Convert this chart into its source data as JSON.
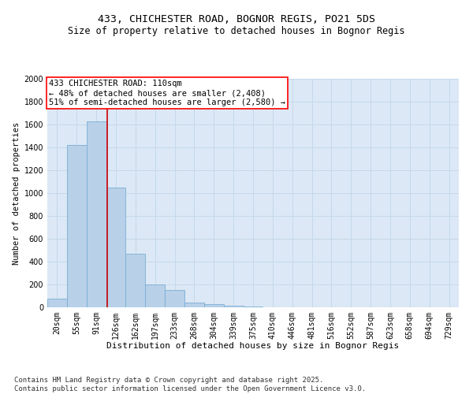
{
  "title_line1": "433, CHICHESTER ROAD, BOGNOR REGIS, PO21 5DS",
  "title_line2": "Size of property relative to detached houses in Bognor Regis",
  "xlabel": "Distribution of detached houses by size in Bognor Regis",
  "ylabel": "Number of detached properties",
  "bar_color": "#b8d0e8",
  "bar_edge_color": "#7aaed4",
  "categories": [
    "20sqm",
    "55sqm",
    "91sqm",
    "126sqm",
    "162sqm",
    "197sqm",
    "233sqm",
    "268sqm",
    "304sqm",
    "339sqm",
    "375sqm",
    "410sqm",
    "446sqm",
    "481sqm",
    "516sqm",
    "552sqm",
    "587sqm",
    "623sqm",
    "658sqm",
    "694sqm",
    "729sqm"
  ],
  "values": [
    75,
    1420,
    1630,
    1050,
    470,
    200,
    150,
    40,
    30,
    15,
    10,
    0,
    0,
    0,
    0,
    0,
    0,
    0,
    0,
    0,
    0
  ],
  "vline_x": 2.55,
  "vline_color": "#cc0000",
  "annotation_text": "433 CHICHESTER ROAD: 110sqm\n← 48% of detached houses are smaller (2,408)\n51% of semi-detached houses are larger (2,580) →",
  "ylim": [
    0,
    2000
  ],
  "yticks": [
    0,
    200,
    400,
    600,
    800,
    1000,
    1200,
    1400,
    1600,
    1800,
    2000
  ],
  "grid_color": "#c5d8eb",
  "bg_color": "#dce8f5",
  "footnote": "Contains HM Land Registry data © Crown copyright and database right 2025.\nContains public sector information licensed under the Open Government Licence v3.0.",
  "title_fontsize": 9.5,
  "subtitle_fontsize": 8.5,
  "annotation_fontsize": 7.5,
  "footnote_fontsize": 6.5,
  "tick_fontsize": 7,
  "ylabel_fontsize": 7.5,
  "xlabel_fontsize": 8
}
